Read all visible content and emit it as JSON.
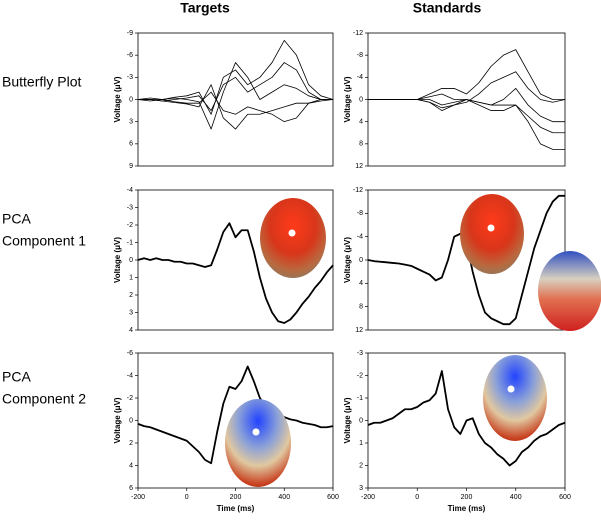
{
  "column_titles": [
    "Targets",
    "Standards"
  ],
  "row_labels": [
    [
      "Butterfly Plot"
    ],
    [
      "PCA",
      "Component 1"
    ],
    [
      "PCA",
      "Component 2"
    ]
  ],
  "chart_data": [
    {
      "type": "line",
      "ylabel": "Voltage (μV)",
      "y_inverted": true,
      "x": [
        -200,
        -150,
        -100,
        -50,
        0,
        50,
        100,
        150,
        200,
        250,
        300,
        350,
        400,
        450,
        500,
        550,
        600
      ],
      "xlim": [
        -200,
        600
      ],
      "ylim": [
        -9,
        9
      ],
      "yticks": [
        -9,
        -6,
        -3,
        0,
        3,
        6,
        9
      ],
      "series": [
        {
          "color": "#000000",
          "values": [
            0,
            0,
            0,
            -0.3,
            -0.5,
            -1,
            2,
            -3,
            -4,
            -2,
            -3,
            -5,
            -8,
            -6,
            -2,
            -0.5,
            0
          ]
        },
        {
          "color": "#000000",
          "values": [
            0,
            0,
            0.2,
            0,
            -0.2,
            -0.5,
            1.5,
            -2,
            -3,
            -1,
            -2,
            -3,
            -5,
            -4,
            -1,
            0,
            0
          ]
        },
        {
          "color": "#000000",
          "values": [
            0,
            0.2,
            0,
            0.3,
            0.5,
            0.5,
            -1,
            1.5,
            2,
            1,
            1.5,
            2,
            3,
            2.5,
            0.5,
            0,
            0
          ]
        },
        {
          "color": "#000000",
          "values": [
            0,
            0,
            0.2,
            0.4,
            0.6,
            1,
            -2,
            2.5,
            4,
            2,
            2,
            1.5,
            1,
            0.5,
            0.5,
            0.2,
            0
          ]
        },
        {
          "color": "#000000",
          "values": [
            0,
            -0.2,
            0,
            -0.2,
            0,
            0.3,
            4,
            -1,
            -5,
            -3,
            0,
            -1,
            -2,
            -1.5,
            -0.5,
            0,
            0
          ]
        }
      ]
    },
    {
      "type": "line",
      "ylabel": "Voltage (μV)",
      "y_inverted": true,
      "x": [
        -200,
        -150,
        -100,
        -50,
        0,
        50,
        100,
        150,
        200,
        250,
        300,
        350,
        400,
        450,
        500,
        550,
        600
      ],
      "xlim": [
        -200,
        600
      ],
      "ylim": [
        -12,
        12
      ],
      "yticks": [
        -12,
        -8,
        -4,
        0,
        4,
        8,
        12
      ],
      "series": [
        {
          "color": "#000000",
          "values": [
            0,
            0,
            0,
            0,
            0,
            -1,
            -2,
            -2,
            -1,
            -3,
            -6,
            -8,
            -9,
            -5,
            -1,
            0,
            0
          ]
        },
        {
          "color": "#000000",
          "values": [
            0,
            0,
            0,
            0,
            0,
            0.5,
            1.5,
            1,
            0.5,
            -1,
            -3,
            -4,
            -5,
            -2,
            0,
            0.5,
            0
          ]
        },
        {
          "color": "#000000",
          "values": [
            0,
            0,
            0,
            0,
            0,
            0.5,
            2,
            1,
            0,
            1,
            2,
            2,
            1,
            4,
            8,
            9,
            9
          ]
        },
        {
          "color": "#000000",
          "values": [
            0,
            0,
            0,
            0,
            0,
            0,
            1,
            0.5,
            0,
            0.5,
            1,
            1,
            1,
            3,
            5,
            6,
            6
          ]
        },
        {
          "color": "#000000",
          "values": [
            0,
            0,
            0,
            0,
            0,
            -0.5,
            -1,
            0,
            0,
            0.5,
            1,
            0,
            -2,
            1,
            3,
            4,
            4
          ]
        }
      ]
    },
    {
      "type": "line",
      "ylabel": "Voltage (μV)",
      "y_inverted": true,
      "x": [
        -200,
        -175,
        -150,
        -125,
        -100,
        -75,
        -50,
        -25,
        0,
        25,
        50,
        75,
        100,
        125,
        150,
        175,
        200,
        225,
        250,
        275,
        300,
        325,
        350,
        375,
        400,
        425,
        450,
        475,
        500,
        525,
        550,
        575,
        600
      ],
      "xlim": [
        -200,
        600
      ],
      "ylim": [
        -4,
        4
      ],
      "yticks": [
        -4,
        -3,
        -2,
        -1,
        0,
        1,
        2,
        3,
        4
      ],
      "series": [
        {
          "color": "#000000",
          "values": [
            0,
            -0.1,
            0,
            -0.1,
            0,
            0,
            0.1,
            0.1,
            0.2,
            0.2,
            0.3,
            0.4,
            0.3,
            -0.6,
            -1.6,
            -2.1,
            -1.3,
            -1.7,
            -1.7,
            -0.5,
            1.0,
            2.2,
            3.0,
            3.5,
            3.6,
            3.4,
            3.0,
            2.5,
            2.1,
            1.6,
            1.2,
            0.7,
            0.3
          ]
        }
      ]
    },
    {
      "type": "line",
      "ylabel": "Voltage (μV)",
      "y_inverted": true,
      "x": [
        -200,
        -175,
        -150,
        -125,
        -100,
        -75,
        -50,
        -25,
        0,
        25,
        50,
        75,
        100,
        125,
        150,
        175,
        200,
        225,
        250,
        275,
        300,
        325,
        350,
        375,
        400,
        425,
        450,
        475,
        500,
        525,
        550,
        575,
        600
      ],
      "xlim": [
        -200,
        600
      ],
      "ylim": [
        -12,
        12
      ],
      "yticks": [
        -12,
        -8,
        -4,
        0,
        4,
        8,
        12
      ],
      "series": [
        {
          "color": "#000000",
          "values": [
            0,
            0.2,
            0.3,
            0.4,
            0.5,
            0.6,
            0.8,
            1,
            1.5,
            2,
            2.5,
            3.5,
            3,
            0,
            -4,
            -4.5,
            -3,
            2,
            6,
            9,
            10,
            10.5,
            11,
            11,
            10,
            6,
            2,
            -2,
            -5,
            -8,
            -10,
            -11,
            -11
          ]
        }
      ]
    },
    {
      "type": "line",
      "ylabel": "Voltage (μV)",
      "xlabel": "Time (ms)",
      "y_inverted": true,
      "x": [
        -200,
        -175,
        -150,
        -125,
        -100,
        -75,
        -50,
        -25,
        0,
        25,
        50,
        75,
        100,
        125,
        150,
        175,
        200,
        225,
        250,
        275,
        300,
        325,
        350,
        375,
        400,
        425,
        450,
        475,
        500,
        525,
        550,
        575,
        600
      ],
      "xlim": [
        -200,
        600
      ],
      "xticks": [
        -200,
        0,
        200,
        400,
        600
      ],
      "ylim": [
        -6,
        6
      ],
      "yticks": [
        -6,
        -4,
        -2,
        0,
        2,
        4,
        6
      ],
      "series": [
        {
          "color": "#000000",
          "values": [
            0.3,
            0.5,
            0.6,
            0.8,
            1,
            1.2,
            1.4,
            1.6,
            1.8,
            2.3,
            2.8,
            3.5,
            3.8,
            1,
            -1.5,
            -3,
            -2.8,
            -3.5,
            -4.8,
            -3.5,
            -2,
            -1.2,
            -0.8,
            -0.5,
            -0.3,
            -0.1,
            0,
            0.2,
            0.3,
            0.4,
            0.6,
            0.6,
            0.5
          ]
        }
      ]
    },
    {
      "type": "line",
      "ylabel": "Voltage (μV)",
      "xlabel": "Time (ms)",
      "y_inverted": true,
      "x": [
        -200,
        -175,
        -150,
        -125,
        -100,
        -75,
        -50,
        -25,
        0,
        25,
        50,
        75,
        100,
        125,
        150,
        175,
        200,
        225,
        250,
        275,
        300,
        325,
        350,
        375,
        400,
        425,
        450,
        475,
        500,
        525,
        550,
        575,
        600
      ],
      "xlim": [
        -200,
        600
      ],
      "xticks": [
        -200,
        0,
        200,
        400,
        600
      ],
      "ylim": [
        -3,
        3
      ],
      "yticks": [
        -3,
        -2,
        -1,
        0,
        1,
        2,
        3
      ],
      "series": [
        {
          "color": "#000000",
          "values": [
            0.2,
            0.1,
            0.1,
            0,
            -0.1,
            -0.3,
            -0.5,
            -0.5,
            -0.6,
            -0.8,
            -0.9,
            -1.2,
            -2.2,
            -0.5,
            0.3,
            0.6,
            0,
            -0.1,
            0.6,
            1.0,
            1.2,
            1.5,
            1.7,
            2.0,
            1.8,
            1.4,
            1.2,
            0.9,
            0.7,
            0.6,
            0.4,
            0.2,
            0.1
          ]
        }
      ]
    }
  ]
}
